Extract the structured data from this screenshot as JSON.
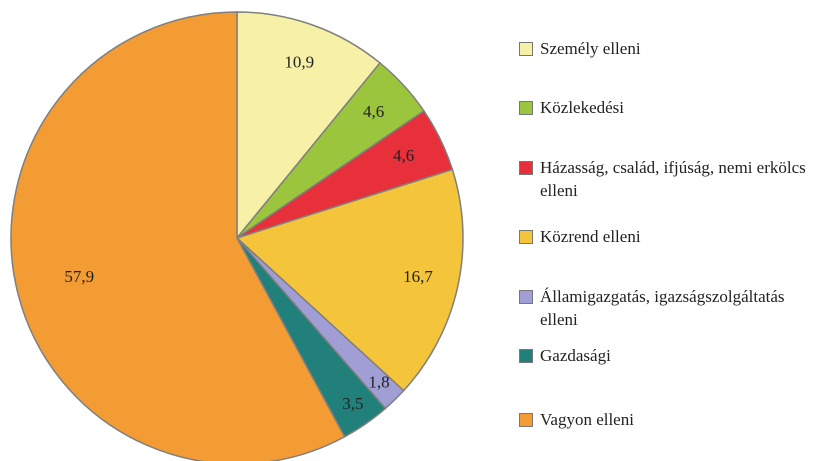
{
  "chart_data": {
    "type": "pie",
    "categories": [
      "Személy elleni",
      "Közlekedési",
      "Házasság, család, ifjúság, nemi erkölcs elleni",
      "Közrend elleni",
      "Államigazgatás, igazságszolgáltatás elleni",
      "Gazdasági",
      "Vagyon elleni"
    ],
    "values": [
      10.9,
      4.6,
      4.6,
      16.7,
      1.8,
      3.5,
      57.9
    ],
    "value_labels": [
      "10,9",
      "4,6",
      "4,6",
      "16,7",
      "1,8",
      "3,5",
      "57,9"
    ],
    "colors": [
      "#f6f1a6",
      "#9bc53d",
      "#e8303a",
      "#f4c43a",
      "#a19ed6",
      "#218079",
      "#f39c34"
    ]
  }
}
